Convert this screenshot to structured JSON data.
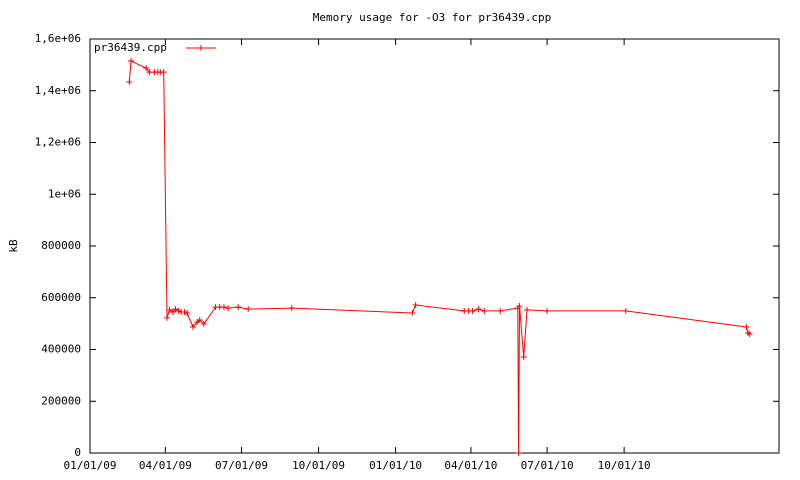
{
  "chart_data": {
    "type": "line",
    "title": "Memory usage for -O3 for pr36439.cpp",
    "y_label": "kB",
    "x": [
      "02/17/09",
      "02/19/09",
      "03/09/09",
      "03/13/09",
      "03/19/09",
      "03/23/09",
      "03/26/09",
      "03/30/09",
      "04/03/09",
      "04/06/09",
      "04/10/09",
      "04/13/09",
      "04/17/09",
      "04/20/09",
      "04/24/09",
      "04/27/09",
      "05/04/09",
      "05/09/09",
      "05/12/09",
      "05/17/09",
      "05/31/09",
      "06/05/09",
      "06/10/09",
      "06/15/09",
      "06/27/09",
      "07/09/09",
      "08/30/09",
      "01/21/10",
      "01/25/10",
      "03/24/10",
      "03/29/10",
      "04/03/10",
      "04/10/10",
      "04/17/10",
      "05/06/10",
      "05/27/10",
      "05/28/10",
      "05/29/10",
      "06/03/10",
      "06/07/10",
      "07/01/10",
      "10/03/10",
      "02/24/11",
      "02/26/11",
      "02/28/11"
    ],
    "series": [
      {
        "name": "pr36439.cpp",
        "color": "#ff0000",
        "values": [
          1434000,
          1515000,
          1488000,
          1472000,
          1472000,
          1472000,
          1472000,
          1472000,
          522000,
          553000,
          545000,
          556000,
          549000,
          545000,
          545000,
          541000,
          487000,
          506000,
          514000,
          499000,
          564000,
          564000,
          564000,
          560000,
          564000,
          556000,
          560000,
          541000,
          572000,
          549000,
          549000,
          549000,
          556000,
          549000,
          549000,
          560000,
          0,
          568000,
          371000,
          553000,
          549000,
          549000,
          487000,
          464000,
          460000
        ]
      }
    ],
    "xlim": [
      "01/01/09",
      "04/04/11"
    ],
    "xticks": [
      "01/01/09",
      "04/01/09",
      "07/01/09",
      "10/01/09",
      "01/01/10",
      "04/01/10",
      "07/01/10",
      "10/01/10"
    ],
    "ylim": [
      0,
      1600000
    ],
    "yticks": [
      0,
      200000,
      400000,
      600000,
      800000,
      {
        "value": 1000000,
        "label": "1e+06"
      },
      {
        "value": 1200000,
        "label": "1,2e+06"
      },
      {
        "value": 1400000,
        "label": "1,4e+06"
      },
      {
        "value": 1600000,
        "label": "1,6e+06"
      }
    ],
    "legend": "top-left"
  }
}
